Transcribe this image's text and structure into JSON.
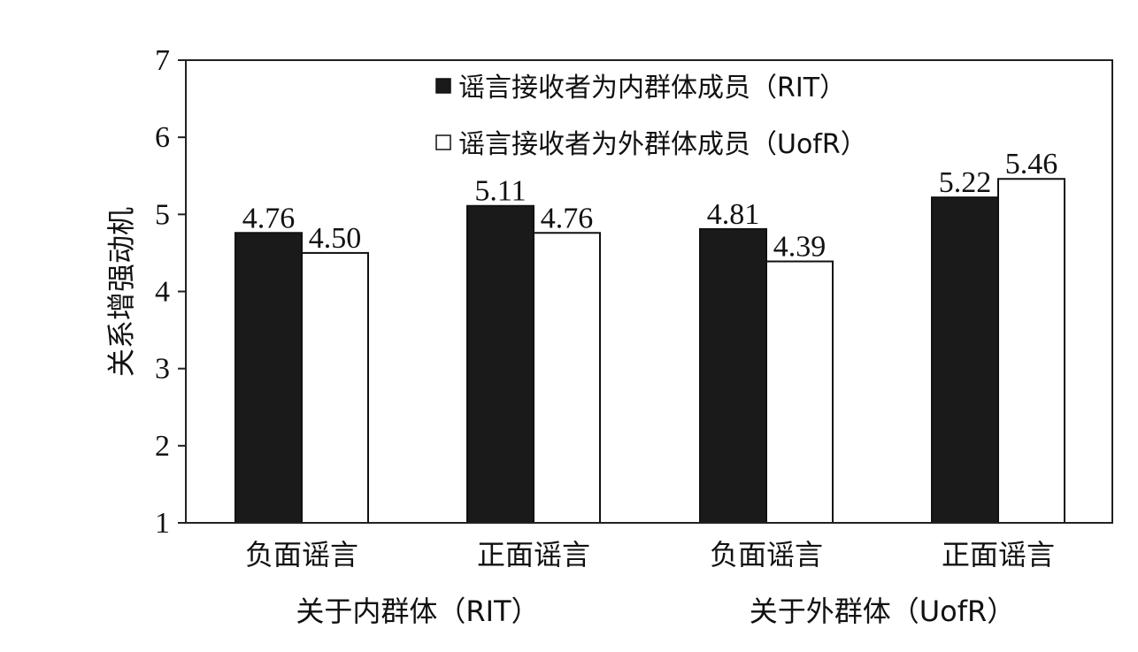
{
  "chart_data": {
    "type": "bar",
    "ylabel": "关系增强动机",
    "ylim": [
      1,
      7
    ],
    "yticks": [
      "1",
      "2",
      "3",
      "4",
      "5",
      "6",
      "7"
    ],
    "grid": false,
    "legend_position": "top-right",
    "categories": [
      "负面谣言",
      "正面谣言",
      "负面谣言",
      "正面谣言"
    ],
    "groups": [
      {
        "label": "关于内群体（RIT）",
        "categories": [
          0,
          1
        ]
      },
      {
        "label": "关于外群体（UofR）",
        "categories": [
          2,
          3
        ]
      }
    ],
    "series": [
      {
        "name": "谣言接收者为内群体成员（RIT）",
        "values": [
          4.76,
          5.11,
          4.81,
          5.22
        ],
        "labels": [
          "4.76",
          "5.11",
          "4.81",
          "5.22"
        ],
        "color": "#1a1a1a"
      },
      {
        "name": "谣言接收者为外群体成员（UofR）",
        "values": [
          4.5,
          4.76,
          4.39,
          5.46
        ],
        "labels": [
          "4.50",
          "4.76",
          "4.39",
          "5.46"
        ],
        "color": "#ffffff"
      }
    ]
  }
}
